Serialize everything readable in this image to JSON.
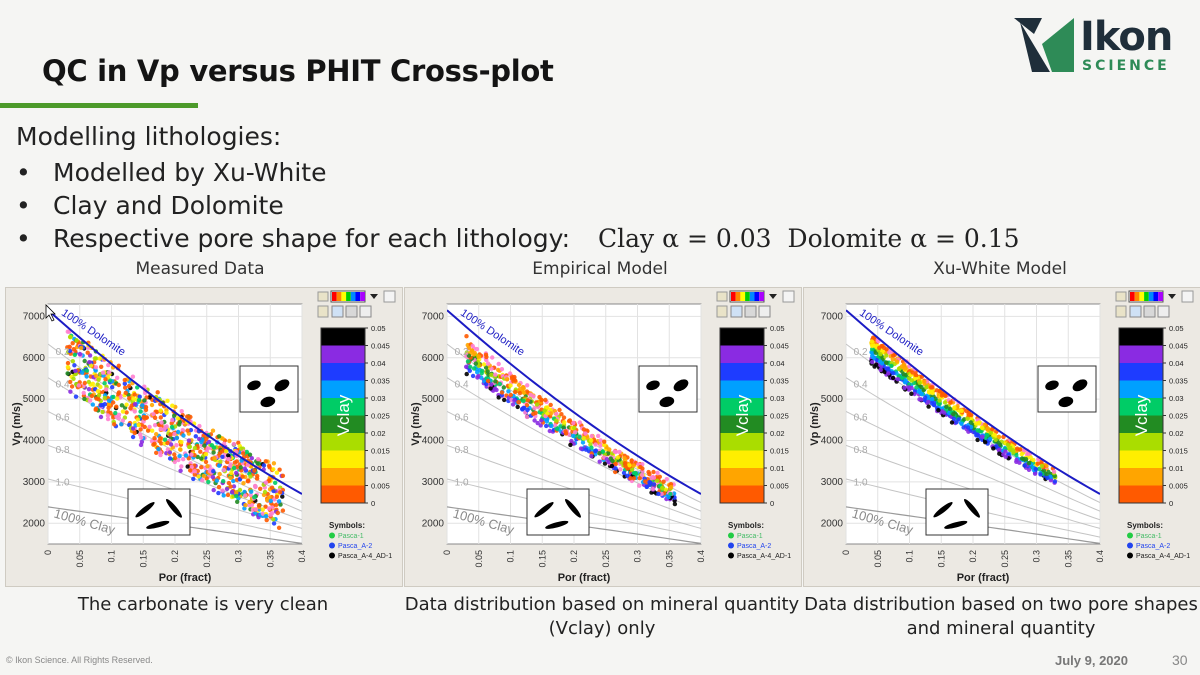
{
  "slide": {
    "title": "QC in Vp versus PHIT Cross-plot",
    "intro": "Modelling lithologies:",
    "bullets": [
      "Modelled by Xu-White",
      "Clay and Dolomite",
      "Respective pore shape for each lithology:"
    ],
    "clay_alpha": "Clay α = 0.03",
    "dolomite_alpha": "Dolomite α = 0.15"
  },
  "logo": {
    "word": "Ikon",
    "sub": "SCIENCE"
  },
  "footer": {
    "copyright": "© Ikon Science. All Rights Reserved.",
    "date": "July 9, 2020",
    "page": "30"
  },
  "colorbar": {
    "label": "Vclay",
    "ticks": [
      "0.05",
      "0.045",
      "0.04",
      "0.035",
      "0.03",
      "0.025",
      "0.02",
      "0.015",
      "0.01",
      "0.005",
      "0"
    ],
    "colors": [
      "#000000",
      "#8a2be2",
      "#1e3cff",
      "#00a0ff",
      "#00cc66",
      "#228b22",
      "#aadd00",
      "#ffee00",
      "#ffa500",
      "#ff5a00",
      "#ff80d0"
    ]
  },
  "symbols": {
    "title": "Symbols:",
    "items": [
      {
        "name": "Pasca-1",
        "color": "#22cc44"
      },
      {
        "name": "Pasca_A-2",
        "color": "#2244ee"
      },
      {
        "name": "Pasca_A-4_AD-1",
        "color": "#000000"
      }
    ]
  },
  "axes": {
    "xlabel": "Por (fract)",
    "ylabel": "Vp (m/s)",
    "xticks": [
      "0",
      "0.05",
      "0.1",
      "0.15",
      "0.2",
      "0.25",
      "0.3",
      "0.35",
      "0.4"
    ],
    "yticks": [
      "2000",
      "3000",
      "4000",
      "5000",
      "6000",
      "7000"
    ],
    "dolomite_label": "100% Dolomite",
    "clay_label": "100% Clay",
    "clay_fraction_labels": [
      "0.2",
      "0.4",
      "0.6",
      "0.8",
      "1.0"
    ]
  },
  "panels": [
    {
      "title": "Measured Data",
      "caption": "The carbonate is very clean"
    },
    {
      "title": "Empirical Model",
      "caption": "Data distribution based on mineral quantity (Vclay) only"
    },
    {
      "title": "Xu-White Model",
      "caption": "Data distribution based on two pore shapes and mineral quantity"
    }
  ],
  "chart_data": [
    {
      "type": "scatter",
      "title": "Measured Data",
      "xlabel": "Por (fract)",
      "ylabel": "Vp (m/s)",
      "xlim": [
        0,
        0.4
      ],
      "ylim": [
        1500,
        7300
      ],
      "series": [
        {
          "name": "Pasca-1"
        },
        {
          "name": "Pasca_A-2"
        },
        {
          "name": "Pasca_A-4_AD-1"
        }
      ],
      "distribution": {
        "x_range": [
          0.03,
          0.37
        ],
        "y_range": [
          3300,
          6700
        ],
        "color_by": "Vclay",
        "spread": "wide"
      },
      "trend_lines": [
        "100% Dolomite",
        "100% Clay"
      ],
      "grid": true,
      "legend_position": "right"
    },
    {
      "type": "scatter",
      "title": "Empirical Model",
      "xlabel": "Por (fract)",
      "ylabel": "Vp (m/s)",
      "xlim": [
        0,
        0.4
      ],
      "ylim": [
        1500,
        7300
      ],
      "series": [
        {
          "name": "Pasca-1"
        },
        {
          "name": "Pasca_A-2"
        },
        {
          "name": "Pasca_A-4_AD-1"
        }
      ],
      "distribution": {
        "x_range": [
          0.03,
          0.36
        ],
        "y_range": [
          2900,
          6700
        ],
        "color_by": "Vclay",
        "spread": "narrow"
      },
      "trend_lines": [
        "100% Dolomite",
        "100% Clay"
      ],
      "grid": true,
      "legend_position": "right"
    },
    {
      "type": "scatter",
      "title": "Xu-White Model",
      "xlabel": "Por (fract)",
      "ylabel": "Vp (m/s)",
      "xlim": [
        0,
        0.4
      ],
      "ylim": [
        1500,
        7300
      ],
      "series": [
        {
          "name": "Pasca-1"
        },
        {
          "name": "Pasca_A-2"
        },
        {
          "name": "Pasca_A-4_AD-1"
        }
      ],
      "distribution": {
        "x_range": [
          0.04,
          0.33
        ],
        "y_range": [
          3500,
          6700
        ],
        "color_by": "Vclay",
        "spread": "band"
      },
      "trend_lines": [
        "100% Dolomite",
        "100% Clay"
      ],
      "grid": true,
      "legend_position": "right"
    }
  ]
}
